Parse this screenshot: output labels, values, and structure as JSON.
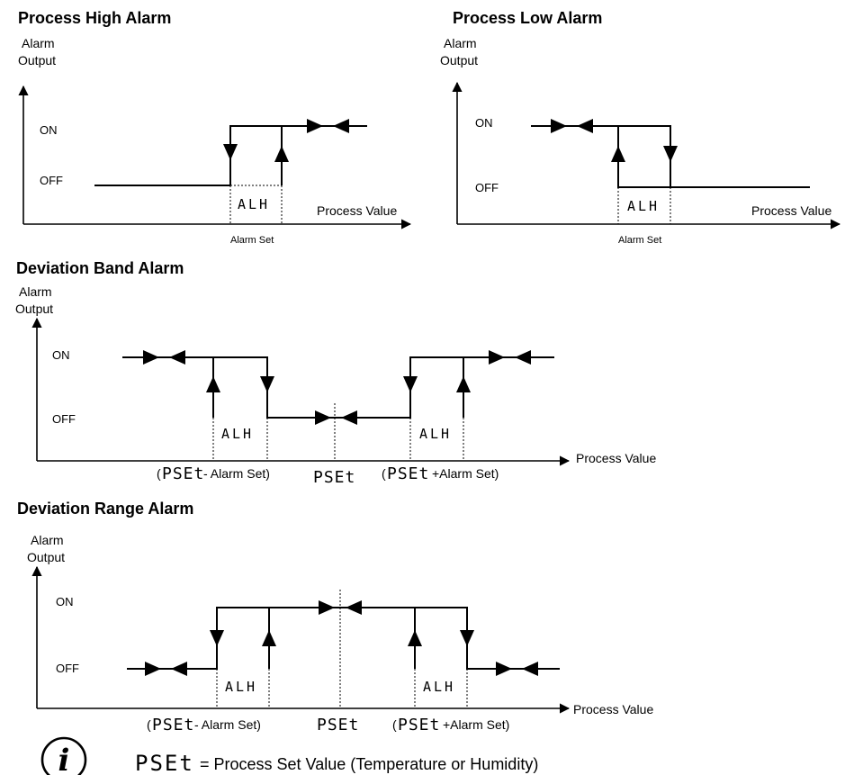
{
  "panels": {
    "high": {
      "title": "Process High Alarm",
      "y_label_1": "Alarm",
      "y_label_2": "Output",
      "on": "ON",
      "off": "OFF",
      "x_label": "Process Value",
      "box_label": "ALH",
      "set_label": "Alarm Set"
    },
    "low": {
      "title": "Process Low Alarm",
      "y_label_1": "Alarm",
      "y_label_2": "Output",
      "on": "ON",
      "off": "OFF",
      "x_label": "Process Value",
      "box_label": "ALH",
      "set_label": "Alarm Set"
    },
    "band": {
      "title": "Deviation Band Alarm",
      "y_label_1": "Alarm",
      "y_label_2": "Output",
      "on": "ON",
      "off": "OFF",
      "x_label": "Process Value",
      "box_left": "ALH",
      "box_right": "ALH",
      "pset": "PSEt",
      "minus_suffix": "- Alarm Set)",
      "plus_suffix": "+Alarm Set)",
      "open_paren": "("
    },
    "range": {
      "title": "Deviation Range Alarm",
      "y_label_1": "Alarm",
      "y_label_2": "Output",
      "on": "ON",
      "off": "OFF",
      "x_label": "Process Value",
      "box_left": "ALH",
      "box_right": "ALH",
      "pset": "PSEt",
      "minus_suffix": "- Alarm Set)",
      "plus_suffix": "+Alarm Set)",
      "open_paren": "("
    }
  },
  "note": {
    "icon": "info-icon",
    "icon_glyph": "i",
    "lcd_term": "PSEt",
    "text": "= Process Set Value (Temperature or Humidity)"
  }
}
